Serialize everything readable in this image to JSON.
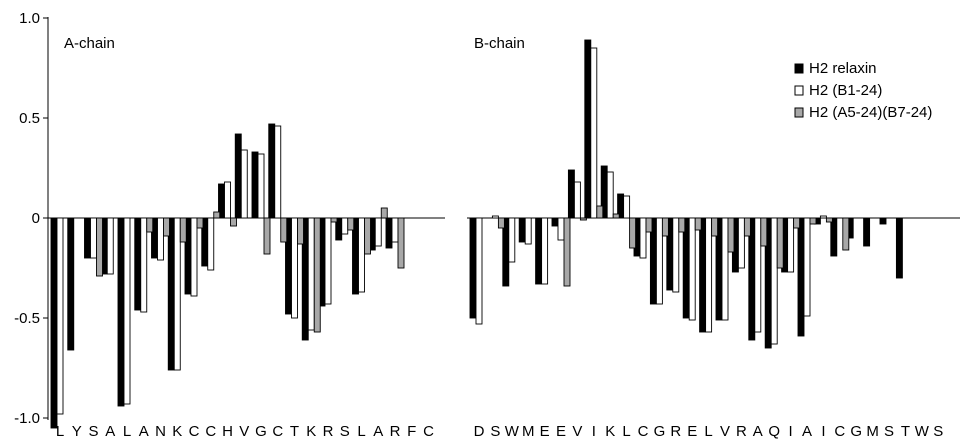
{
  "colors": {
    "h2_relaxin": "#000000",
    "h2_b1_24": "#ffffff",
    "h2_a5_24_b7_24": "#a8a8a8",
    "stroke": "#000000"
  },
  "chart_data": {
    "type": "bar",
    "title": "",
    "xlabel": "",
    "ylabel": "",
    "ylim": [
      -1.05,
      1.0
    ],
    "yticks": [
      {
        "value": 1.0,
        "label": "1.0"
      },
      {
        "value": 0.5,
        "label": "0.5"
      },
      {
        "value": 0,
        "label": "0"
      },
      {
        "value": -0.5,
        "label": "-0.5"
      },
      {
        "value": -1.0,
        "label": "-1.0"
      }
    ],
    "grid": false,
    "legend_position": "top-right",
    "series_names": [
      "H2 relaxin",
      "H2 (B1-24)",
      "H2 (A5-24)(B7-24)"
    ],
    "panels": [
      {
        "title": "A-chain",
        "categories": [
          "L",
          "Y",
          "S",
          "A",
          "L",
          "A",
          "N",
          "K",
          "C",
          "C",
          "H",
          "V",
          "G",
          "C",
          "T",
          "K",
          "R",
          "S",
          "L",
          "A",
          "R",
          "F",
          "C"
        ],
        "series": [
          {
            "name": "H2 relaxin",
            "values": [
              -1.05,
              -0.66,
              -0.2,
              -0.28,
              -0.94,
              -0.46,
              -0.2,
              -0.76,
              -0.38,
              -0.24,
              0.17,
              0.42,
              0.33,
              0.47,
              -0.48,
              -0.61,
              -0.44,
              -0.11,
              -0.38,
              -0.16,
              -0.15,
              null,
              null
            ]
          },
          {
            "name": "H2 (B1-24)",
            "values": [
              -0.98,
              null,
              -0.2,
              -0.28,
              -0.93,
              -0.47,
              -0.21,
              -0.76,
              -0.39,
              -0.26,
              0.18,
              0.34,
              0.32,
              0.46,
              -0.5,
              -0.56,
              -0.43,
              -0.08,
              -0.37,
              -0.14,
              -0.12,
              null,
              null
            ]
          },
          {
            "name": "H2 (A5-24)(B7-24)",
            "values": [
              null,
              null,
              -0.29,
              null,
              null,
              -0.07,
              -0.09,
              -0.12,
              -0.05,
              0.03,
              -0.04,
              null,
              -0.18,
              -0.12,
              -0.13,
              -0.57,
              -0.02,
              -0.06,
              -0.18,
              0.05,
              -0.25,
              null,
              null
            ]
          }
        ]
      },
      {
        "title": "B-chain",
        "categories": [
          "D",
          "S",
          "W",
          "M",
          "E",
          "E",
          "V",
          "I",
          "K",
          "L",
          "C",
          "G",
          "R",
          "E",
          "L",
          "V",
          "R",
          "A",
          "Q",
          "I",
          "A",
          "I",
          "C",
          "G",
          "M",
          "S",
          "T",
          "W",
          "S"
        ],
        "series": [
          {
            "name": "H2 relaxin",
            "values": [
              -0.5,
              null,
              -0.34,
              -0.12,
              -0.33,
              -0.04,
              0.24,
              0.89,
              0.26,
              0.12,
              -0.19,
              -0.43,
              -0.36,
              -0.5,
              -0.57,
              -0.51,
              -0.27,
              -0.61,
              -0.65,
              -0.27,
              -0.59,
              -0.03,
              -0.19,
              -0.1,
              -0.14,
              -0.03,
              -0.3,
              null,
              null
            ]
          },
          {
            "name": "H2 (B1-24)",
            "values": [
              -0.53,
              0.01,
              -0.22,
              -0.13,
              -0.33,
              -0.11,
              0.18,
              0.85,
              0.23,
              0.11,
              -0.2,
              -0.43,
              -0.37,
              -0.51,
              -0.57,
              -0.51,
              -0.25,
              -0.57,
              -0.63,
              -0.27,
              -0.49,
              0.01,
              null,
              null,
              null,
              null,
              null,
              null,
              null
            ]
          },
          {
            "name": "H2 (A5-24)(B7-24)",
            "values": [
              null,
              -0.05,
              null,
              null,
              null,
              -0.34,
              -0.01,
              0.06,
              0.02,
              -0.15,
              -0.07,
              -0.09,
              -0.07,
              -0.06,
              -0.09,
              -0.17,
              -0.09,
              -0.14,
              -0.25,
              -0.05,
              -0.03,
              -0.02,
              -0.16,
              null,
              null,
              null,
              null,
              null,
              null
            ]
          }
        ]
      }
    ]
  }
}
